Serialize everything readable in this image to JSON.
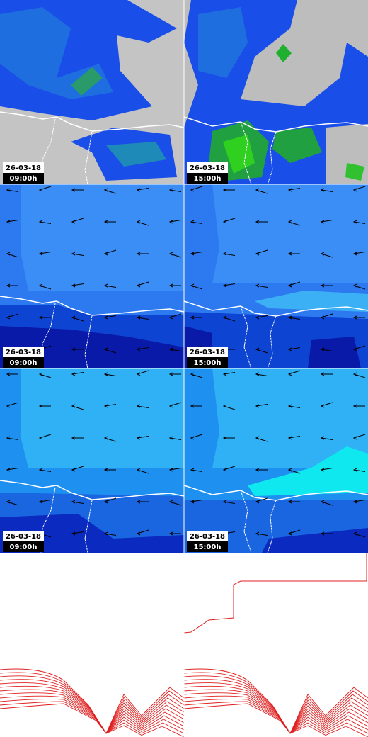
{
  "panels": [
    {
      "date": "26-03-18",
      "time": "09:00h"
    },
    {
      "date": "26-03-18",
      "time": "15:00h"
    },
    {
      "date": "26-03-18",
      "time": "09:00h"
    },
    {
      "date": "26-03-18",
      "time": "15:00h"
    },
    {
      "date": "26-03-18",
      "time": "09:00h"
    },
    {
      "date": "26-03-18",
      "time": "15:00h"
    }
  ]
}
